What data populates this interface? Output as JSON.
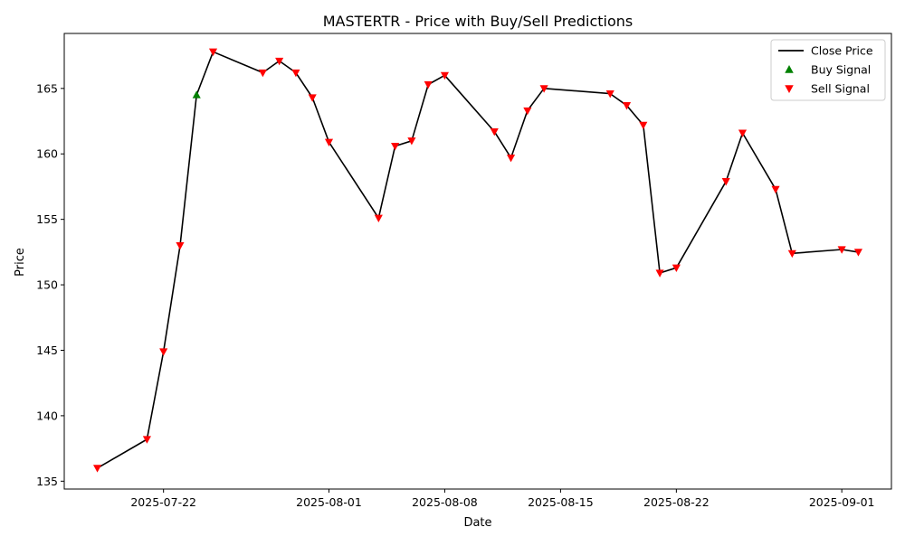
{
  "chart_data": {
    "type": "line",
    "title": "MASTERTR - Price with Buy/Sell Predictions",
    "xlabel": "Date",
    "ylabel": "Price",
    "xlim": [
      "2025-07-16",
      "2025-09-04"
    ],
    "ylim": [
      134.4,
      169.2
    ],
    "x_ticks": [
      "2025-07-22",
      "2025-08-01",
      "2025-08-08",
      "2025-08-15",
      "2025-08-22",
      "2025-09-01"
    ],
    "y_ticks": [
      135,
      140,
      145,
      150,
      155,
      160,
      165
    ],
    "grid": false,
    "legend_position": "top-right",
    "colors": {
      "close": "#000000",
      "buy": "#008000",
      "sell": "#ff0000"
    },
    "series": [
      {
        "name": "Close Price",
        "kind": "line",
        "points": [
          [
            "2025-07-18",
            136.0
          ],
          [
            "2025-07-21",
            138.2
          ],
          [
            "2025-07-22",
            144.9
          ],
          [
            "2025-07-23",
            153.0
          ],
          [
            "2025-07-24",
            164.5
          ],
          [
            "2025-07-25",
            167.8
          ],
          [
            "2025-07-28",
            166.2
          ],
          [
            "2025-07-29",
            167.1
          ],
          [
            "2025-07-30",
            166.2
          ],
          [
            "2025-07-31",
            164.3
          ],
          [
            "2025-08-01",
            160.9
          ],
          [
            "2025-08-04",
            155.1
          ],
          [
            "2025-08-05",
            160.6
          ],
          [
            "2025-08-06",
            161.0
          ],
          [
            "2025-08-07",
            165.3
          ],
          [
            "2025-08-08",
            166.0
          ],
          [
            "2025-08-11",
            161.7
          ],
          [
            "2025-08-12",
            159.7
          ],
          [
            "2025-08-13",
            163.3
          ],
          [
            "2025-08-14",
            165.0
          ],
          [
            "2025-08-18",
            164.6
          ],
          [
            "2025-08-19",
            163.7
          ],
          [
            "2025-08-20",
            162.2
          ],
          [
            "2025-08-21",
            150.9
          ],
          [
            "2025-08-22",
            151.3
          ],
          [
            "2025-08-25",
            157.9
          ],
          [
            "2025-08-26",
            161.6
          ],
          [
            "2025-08-28",
            157.3
          ],
          [
            "2025-08-29",
            152.4
          ],
          [
            "2025-09-01",
            152.7
          ],
          [
            "2025-09-02",
            152.5
          ]
        ]
      },
      {
        "name": "Buy Signal",
        "kind": "marker",
        "marker": "triangle-up",
        "points": [
          [
            "2025-07-24",
            164.5
          ]
        ]
      },
      {
        "name": "Sell Signal",
        "kind": "marker",
        "marker": "triangle-down",
        "points": [
          [
            "2025-07-18",
            136.0
          ],
          [
            "2025-07-21",
            138.2
          ],
          [
            "2025-07-22",
            144.9
          ],
          [
            "2025-07-23",
            153.0
          ],
          [
            "2025-07-25",
            167.8
          ],
          [
            "2025-07-28",
            166.2
          ],
          [
            "2025-07-29",
            167.1
          ],
          [
            "2025-07-30",
            166.2
          ],
          [
            "2025-07-31",
            164.3
          ],
          [
            "2025-08-01",
            160.9
          ],
          [
            "2025-08-04",
            155.1
          ],
          [
            "2025-08-05",
            160.6
          ],
          [
            "2025-08-06",
            161.0
          ],
          [
            "2025-08-07",
            165.3
          ],
          [
            "2025-08-08",
            166.0
          ],
          [
            "2025-08-11",
            161.7
          ],
          [
            "2025-08-12",
            159.7
          ],
          [
            "2025-08-13",
            163.3
          ],
          [
            "2025-08-14",
            165.0
          ],
          [
            "2025-08-18",
            164.6
          ],
          [
            "2025-08-19",
            163.7
          ],
          [
            "2025-08-20",
            162.2
          ],
          [
            "2025-08-21",
            150.9
          ],
          [
            "2025-08-22",
            151.3
          ],
          [
            "2025-08-25",
            157.9
          ],
          [
            "2025-08-26",
            161.6
          ],
          [
            "2025-08-28",
            157.3
          ],
          [
            "2025-08-29",
            152.4
          ],
          [
            "2025-09-01",
            152.7
          ],
          [
            "2025-09-02",
            152.5
          ]
        ]
      }
    ]
  }
}
